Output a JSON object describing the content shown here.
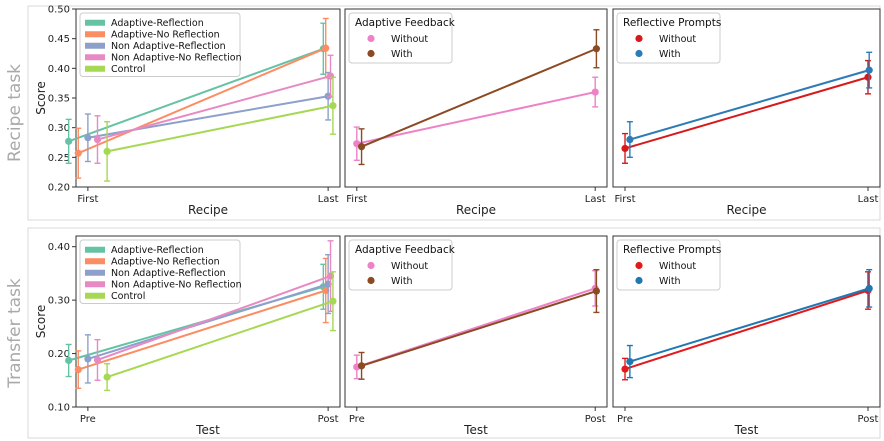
{
  "row_labels": [
    "Recipe task",
    "Transfer task"
  ],
  "chart_data": [
    {
      "id": "recipe-conditions",
      "type": "line",
      "row": 0,
      "col": 0,
      "x": [
        "First",
        "Last"
      ],
      "xlabel": "Recipe",
      "ylabel": "Score",
      "ylim": [
        0.2,
        0.5
      ],
      "yticks": [
        0.2,
        0.25,
        0.3,
        0.35,
        0.4,
        0.45,
        0.5
      ],
      "ytick_labels": [
        "0.20",
        "0.25",
        "0.30",
        "0.35",
        "0.40",
        "0.45",
        "0.50"
      ],
      "grid": false,
      "legend": {
        "title": "",
        "placement": "top-left"
      },
      "series": [
        {
          "name": "Adaptive-Reflection",
          "color": "#66c2a5",
          "values": [
            0.277,
            0.433
          ],
          "err": [
            0.037,
            0.043
          ],
          "offset": -0.08
        },
        {
          "name": "Adaptive-No Reflection",
          "color": "#fc8d62",
          "values": [
            0.257,
            0.434
          ],
          "err": [
            0.042,
            0.05
          ],
          "offset": -0.04
        },
        {
          "name": "Non Adaptive-Reflection",
          "color": "#8da0cb",
          "values": [
            0.283,
            0.353
          ],
          "err": [
            0.04,
            0.04
          ],
          "offset": 0
        },
        {
          "name": "Non Adaptive-No Reflection",
          "color": "#e78ac3",
          "values": [
            0.28,
            0.387
          ],
          "err": [
            0.04,
            0.035
          ],
          "offset": 0.04
        },
        {
          "name": "Control",
          "color": "#a6d854",
          "values": [
            0.26,
            0.337
          ],
          "err": [
            0.05,
            0.048
          ],
          "offset": 0.08
        }
      ]
    },
    {
      "id": "recipe-feedback",
      "type": "line",
      "row": 0,
      "col": 1,
      "x": [
        "First",
        "Last"
      ],
      "xlabel": "Recipe",
      "ylabel": "",
      "ylim": [
        0.2,
        0.5
      ],
      "grid": false,
      "legend": {
        "title": "Adaptive Feedback",
        "placement": "top-left"
      },
      "series": [
        {
          "name": "Without",
          "color": "#ee82c8",
          "values": [
            0.273,
            0.36
          ],
          "err": [
            0.028,
            0.025
          ],
          "offset": 0
        },
        {
          "name": "With",
          "color": "#8b4a22",
          "values": [
            0.268,
            0.433
          ],
          "err": [
            0.03,
            0.032
          ],
          "offset": 0.02
        }
      ]
    },
    {
      "id": "recipe-prompts",
      "type": "line",
      "row": 0,
      "col": 2,
      "x": [
        "First",
        "Last"
      ],
      "xlabel": "Recipe",
      "ylabel": "",
      "ylim": [
        0.2,
        0.5
      ],
      "grid": false,
      "legend": {
        "title": "Reflective Prompts",
        "placement": "top-left"
      },
      "series": [
        {
          "name": "Without",
          "color": "#d7191c",
          "values": [
            0.265,
            0.385
          ],
          "err": [
            0.025,
            0.028
          ],
          "offset": 0
        },
        {
          "name": "With",
          "color": "#2c7bb6",
          "values": [
            0.28,
            0.397
          ],
          "err": [
            0.03,
            0.03
          ],
          "offset": 0.02
        }
      ]
    },
    {
      "id": "transfer-conditions",
      "type": "line",
      "row": 1,
      "col": 0,
      "x": [
        "Pre",
        "Post"
      ],
      "xlabel": "Test",
      "ylabel": "Score",
      "ylim": [
        0.1,
        0.42
      ],
      "yticks": [
        0.1,
        0.2,
        0.3,
        0.4
      ],
      "ytick_labels": [
        "0.10",
        "0.20",
        "0.30",
        "0.40"
      ],
      "grid": false,
      "legend": {
        "title": "",
        "placement": "top-left"
      },
      "series": [
        {
          "name": "Adaptive-Reflection",
          "color": "#66c2a5",
          "values": [
            0.187,
            0.325
          ],
          "err": [
            0.03,
            0.042
          ],
          "offset": -0.08
        },
        {
          "name": "Adaptive-No Reflection",
          "color": "#fc8d62",
          "values": [
            0.17,
            0.318
          ],
          "err": [
            0.035,
            0.06
          ],
          "offset": -0.04
        },
        {
          "name": "Non Adaptive-Reflection",
          "color": "#8da0cb",
          "values": [
            0.19,
            0.33
          ],
          "err": [
            0.045,
            0.055
          ],
          "offset": 0
        },
        {
          "name": "Non Adaptive-No Reflection",
          "color": "#e78ac3",
          "values": [
            0.188,
            0.345
          ],
          "err": [
            0.038,
            0.066
          ],
          "offset": 0.04
        },
        {
          "name": "Control",
          "color": "#a6d854",
          "values": [
            0.156,
            0.298
          ],
          "err": [
            0.025,
            0.055
          ],
          "offset": 0.08
        }
      ]
    },
    {
      "id": "transfer-feedback",
      "type": "line",
      "row": 1,
      "col": 1,
      "x": [
        "Pre",
        "Post"
      ],
      "xlabel": "Test",
      "ylabel": "",
      "ylim": [
        0.1,
        0.42
      ],
      "grid": false,
      "legend": {
        "title": "Adaptive Feedback",
        "placement": "top-left"
      },
      "series": [
        {
          "name": "Without",
          "color": "#ee82c8",
          "values": [
            0.175,
            0.322
          ],
          "err": [
            0.022,
            0.033
          ],
          "offset": 0
        },
        {
          "name": "With",
          "color": "#8b4a22",
          "values": [
            0.177,
            0.317
          ],
          "err": [
            0.025,
            0.04
          ],
          "offset": 0.02
        }
      ]
    },
    {
      "id": "transfer-prompts",
      "type": "line",
      "row": 1,
      "col": 2,
      "x": [
        "Pre",
        "Post"
      ],
      "xlabel": "Test",
      "ylabel": "",
      "ylim": [
        0.1,
        0.42
      ],
      "grid": false,
      "legend": {
        "title": "Reflective Prompts",
        "placement": "top-left"
      },
      "series": [
        {
          "name": "Without",
          "color": "#e31a1c",
          "values": [
            0.171,
            0.318
          ],
          "err": [
            0.02,
            0.035
          ],
          "offset": 0
        },
        {
          "name": "With",
          "color": "#1f78b4",
          "values": [
            0.185,
            0.322
          ],
          "err": [
            0.03,
            0.035
          ],
          "offset": 0.02
        }
      ]
    }
  ]
}
